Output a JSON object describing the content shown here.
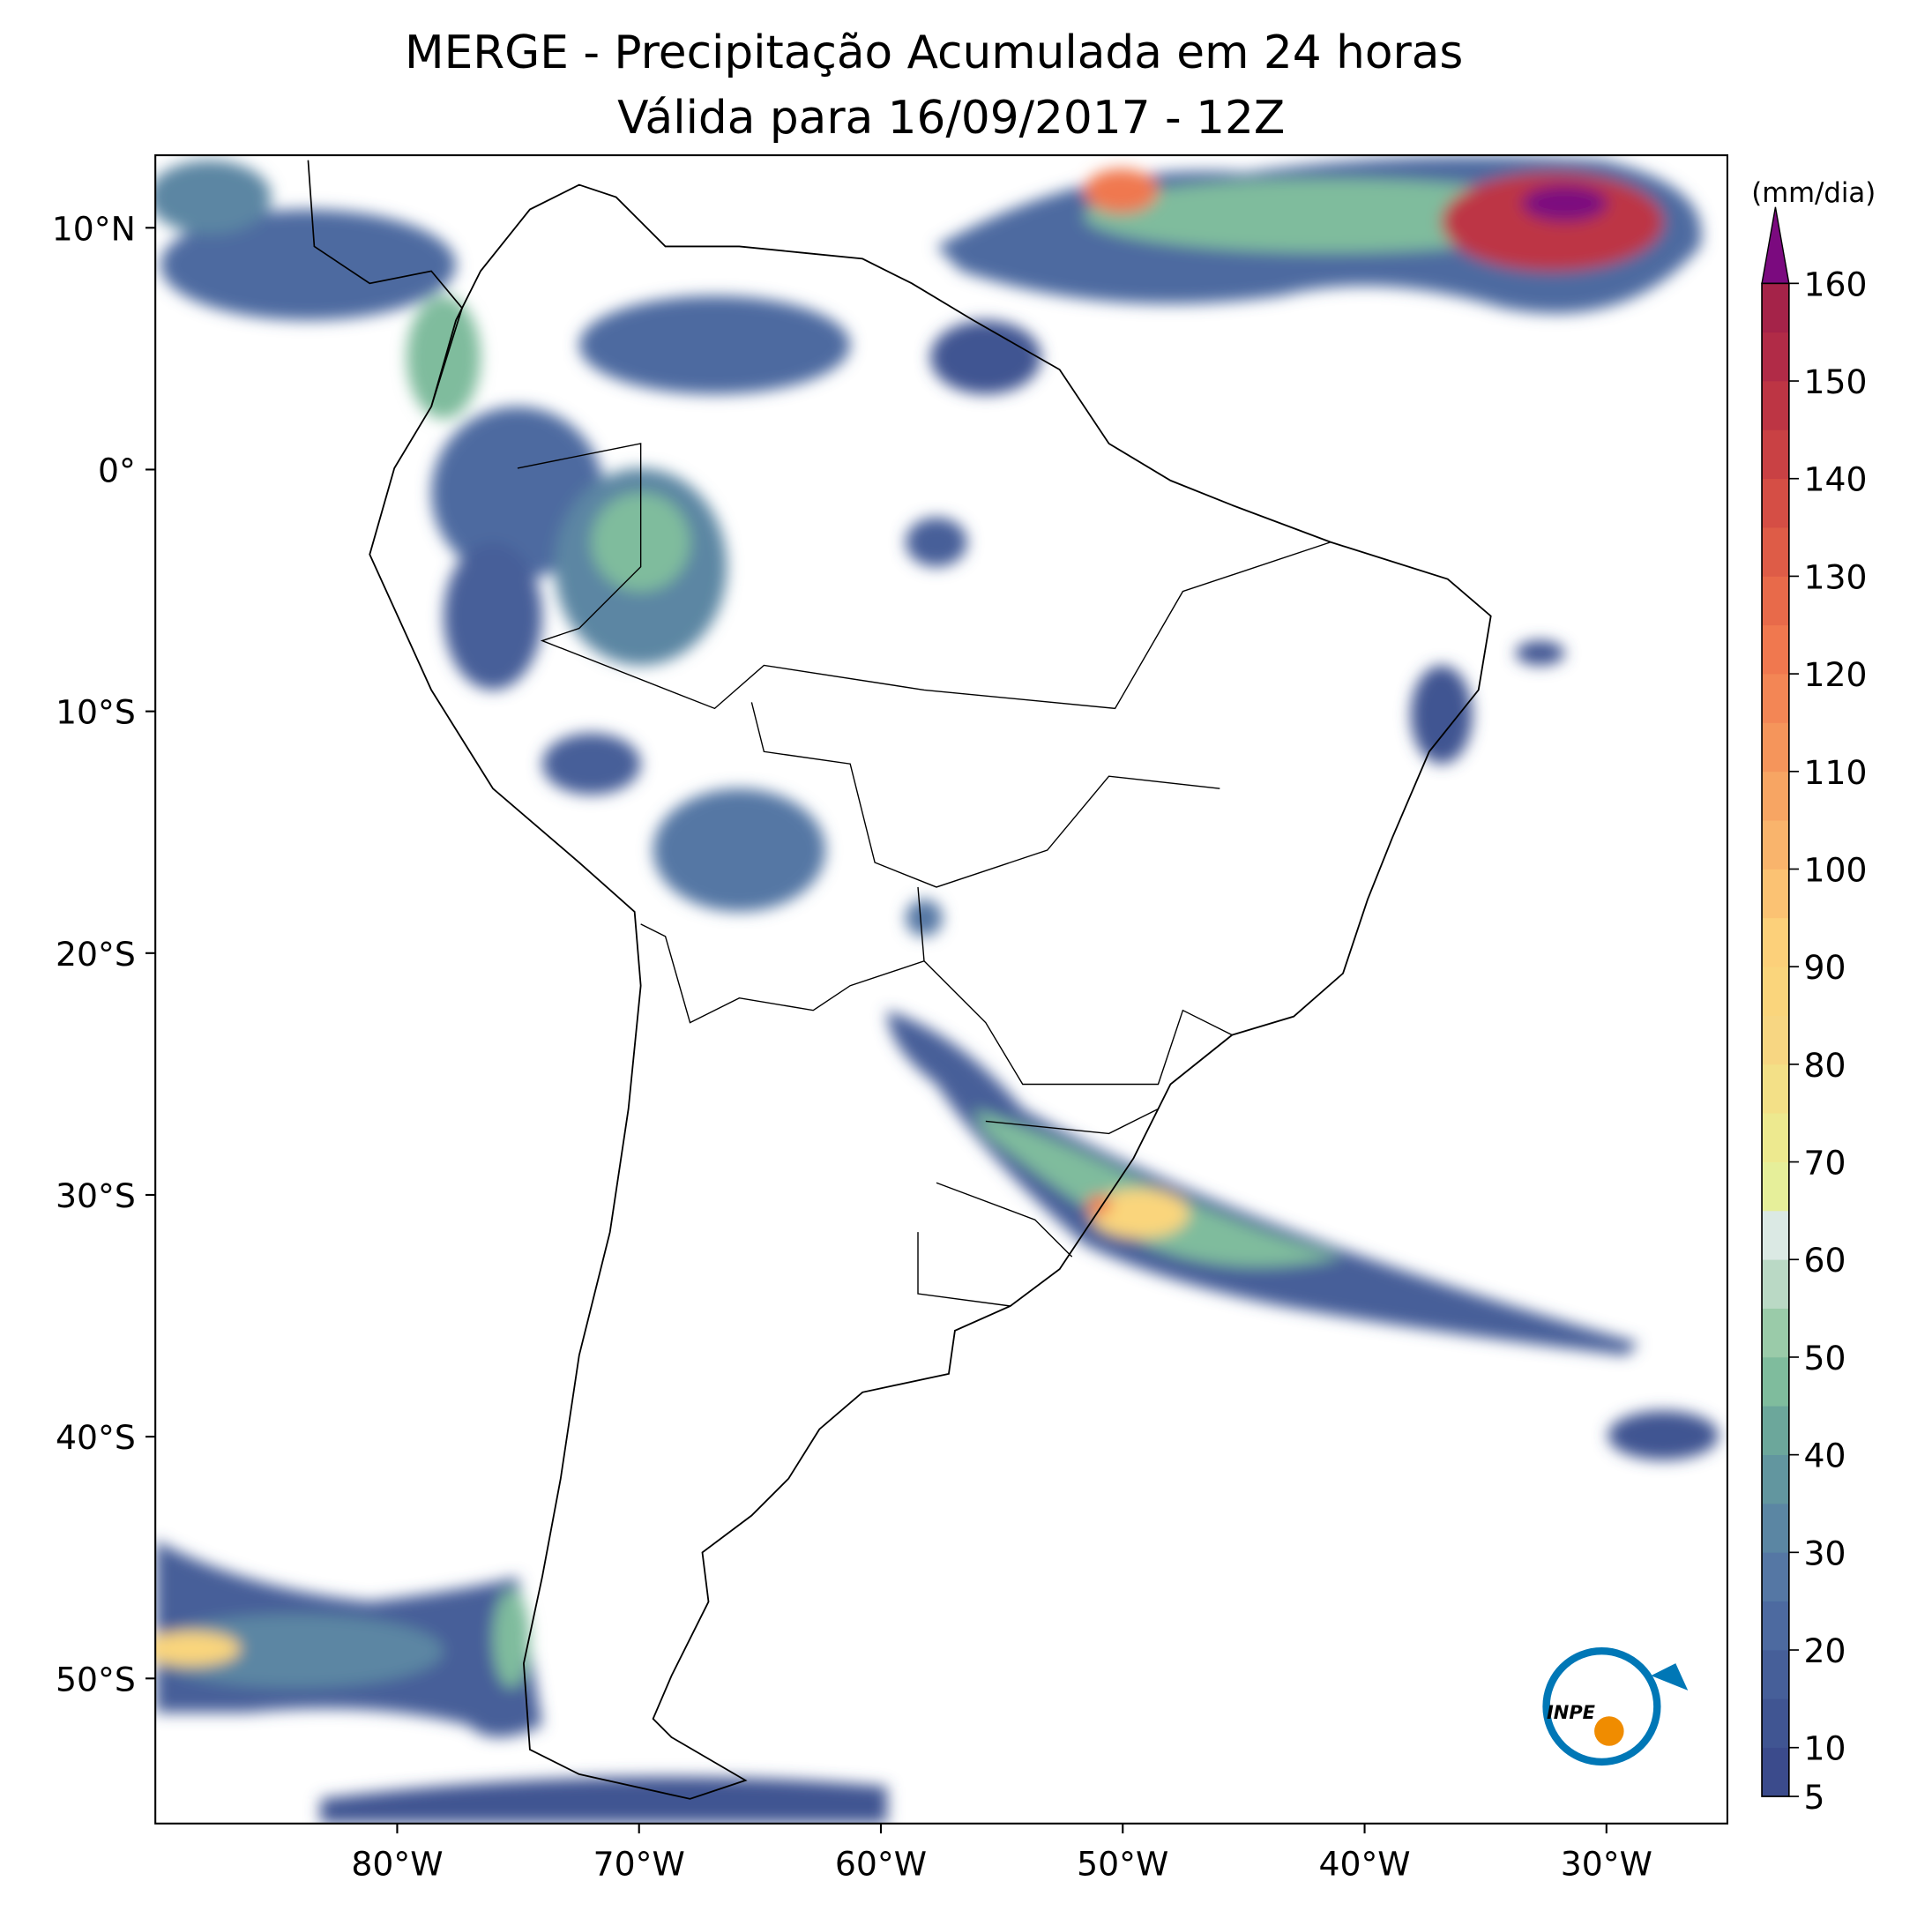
{
  "chart_data": {
    "type": "map",
    "title": "MERGE - Precipitação Acumulada em 24 horas",
    "subtitle": "Válida para 16/09/2017 - 12Z",
    "xlim": [
      -90,
      -25
    ],
    "ylim": [
      -56,
      13
    ],
    "xticks": [
      {
        "value": -80,
        "label": "80°W"
      },
      {
        "value": -70,
        "label": "70°W"
      },
      {
        "value": -60,
        "label": "60°W"
      },
      {
        "value": -50,
        "label": "50°W"
      },
      {
        "value": -40,
        "label": "40°W"
      },
      {
        "value": -30,
        "label": "30°W"
      }
    ],
    "yticks": [
      {
        "value": 10,
        "label": "10°N"
      },
      {
        "value": 0,
        "label": "0°"
      },
      {
        "value": -10,
        "label": "10°S"
      },
      {
        "value": -20,
        "label": "20°S"
      },
      {
        "value": -30,
        "label": "30°S"
      },
      {
        "value": -40,
        "label": "40°S"
      },
      {
        "value": -50,
        "label": "50°S"
      }
    ],
    "colorbar": {
      "label": "(mm/dia)",
      "lim": [
        5,
        160
      ],
      "ticks": [
        5,
        10,
        20,
        30,
        40,
        50,
        60,
        70,
        80,
        90,
        100,
        110,
        120,
        130,
        140,
        150,
        160
      ],
      "bounds": [
        5,
        10,
        15,
        20,
        25,
        30,
        35,
        40,
        45,
        50,
        55,
        60,
        65,
        70,
        75,
        80,
        85,
        90,
        95,
        100,
        105,
        110,
        115,
        120,
        125,
        130,
        135,
        140,
        145,
        150,
        155,
        160
      ],
      "colors": [
        "#3b4b8c",
        "#405592",
        "#465f99",
        "#4d6aa0",
        "#5577a4",
        "#5b86a3",
        "#62969f",
        "#6ca79b",
        "#7fbc9d",
        "#9acba9",
        "#bad9c5",
        "#dbe9e4",
        "#e6ef9a",
        "#ede98f",
        "#f3e087",
        "#f7d682",
        "#fad57c",
        "#fcd07a",
        "#fbc273",
        "#f9b46c",
        "#f7a563",
        "#f5955b",
        "#f38655",
        "#f0784f",
        "#e86a4a",
        "#de5c47",
        "#d54e45",
        "#c94144",
        "#bd3544",
        "#b12b47",
        "#a52349"
      ],
      "extend_color": "#7b0a7f"
    },
    "logo": "INPE"
  }
}
